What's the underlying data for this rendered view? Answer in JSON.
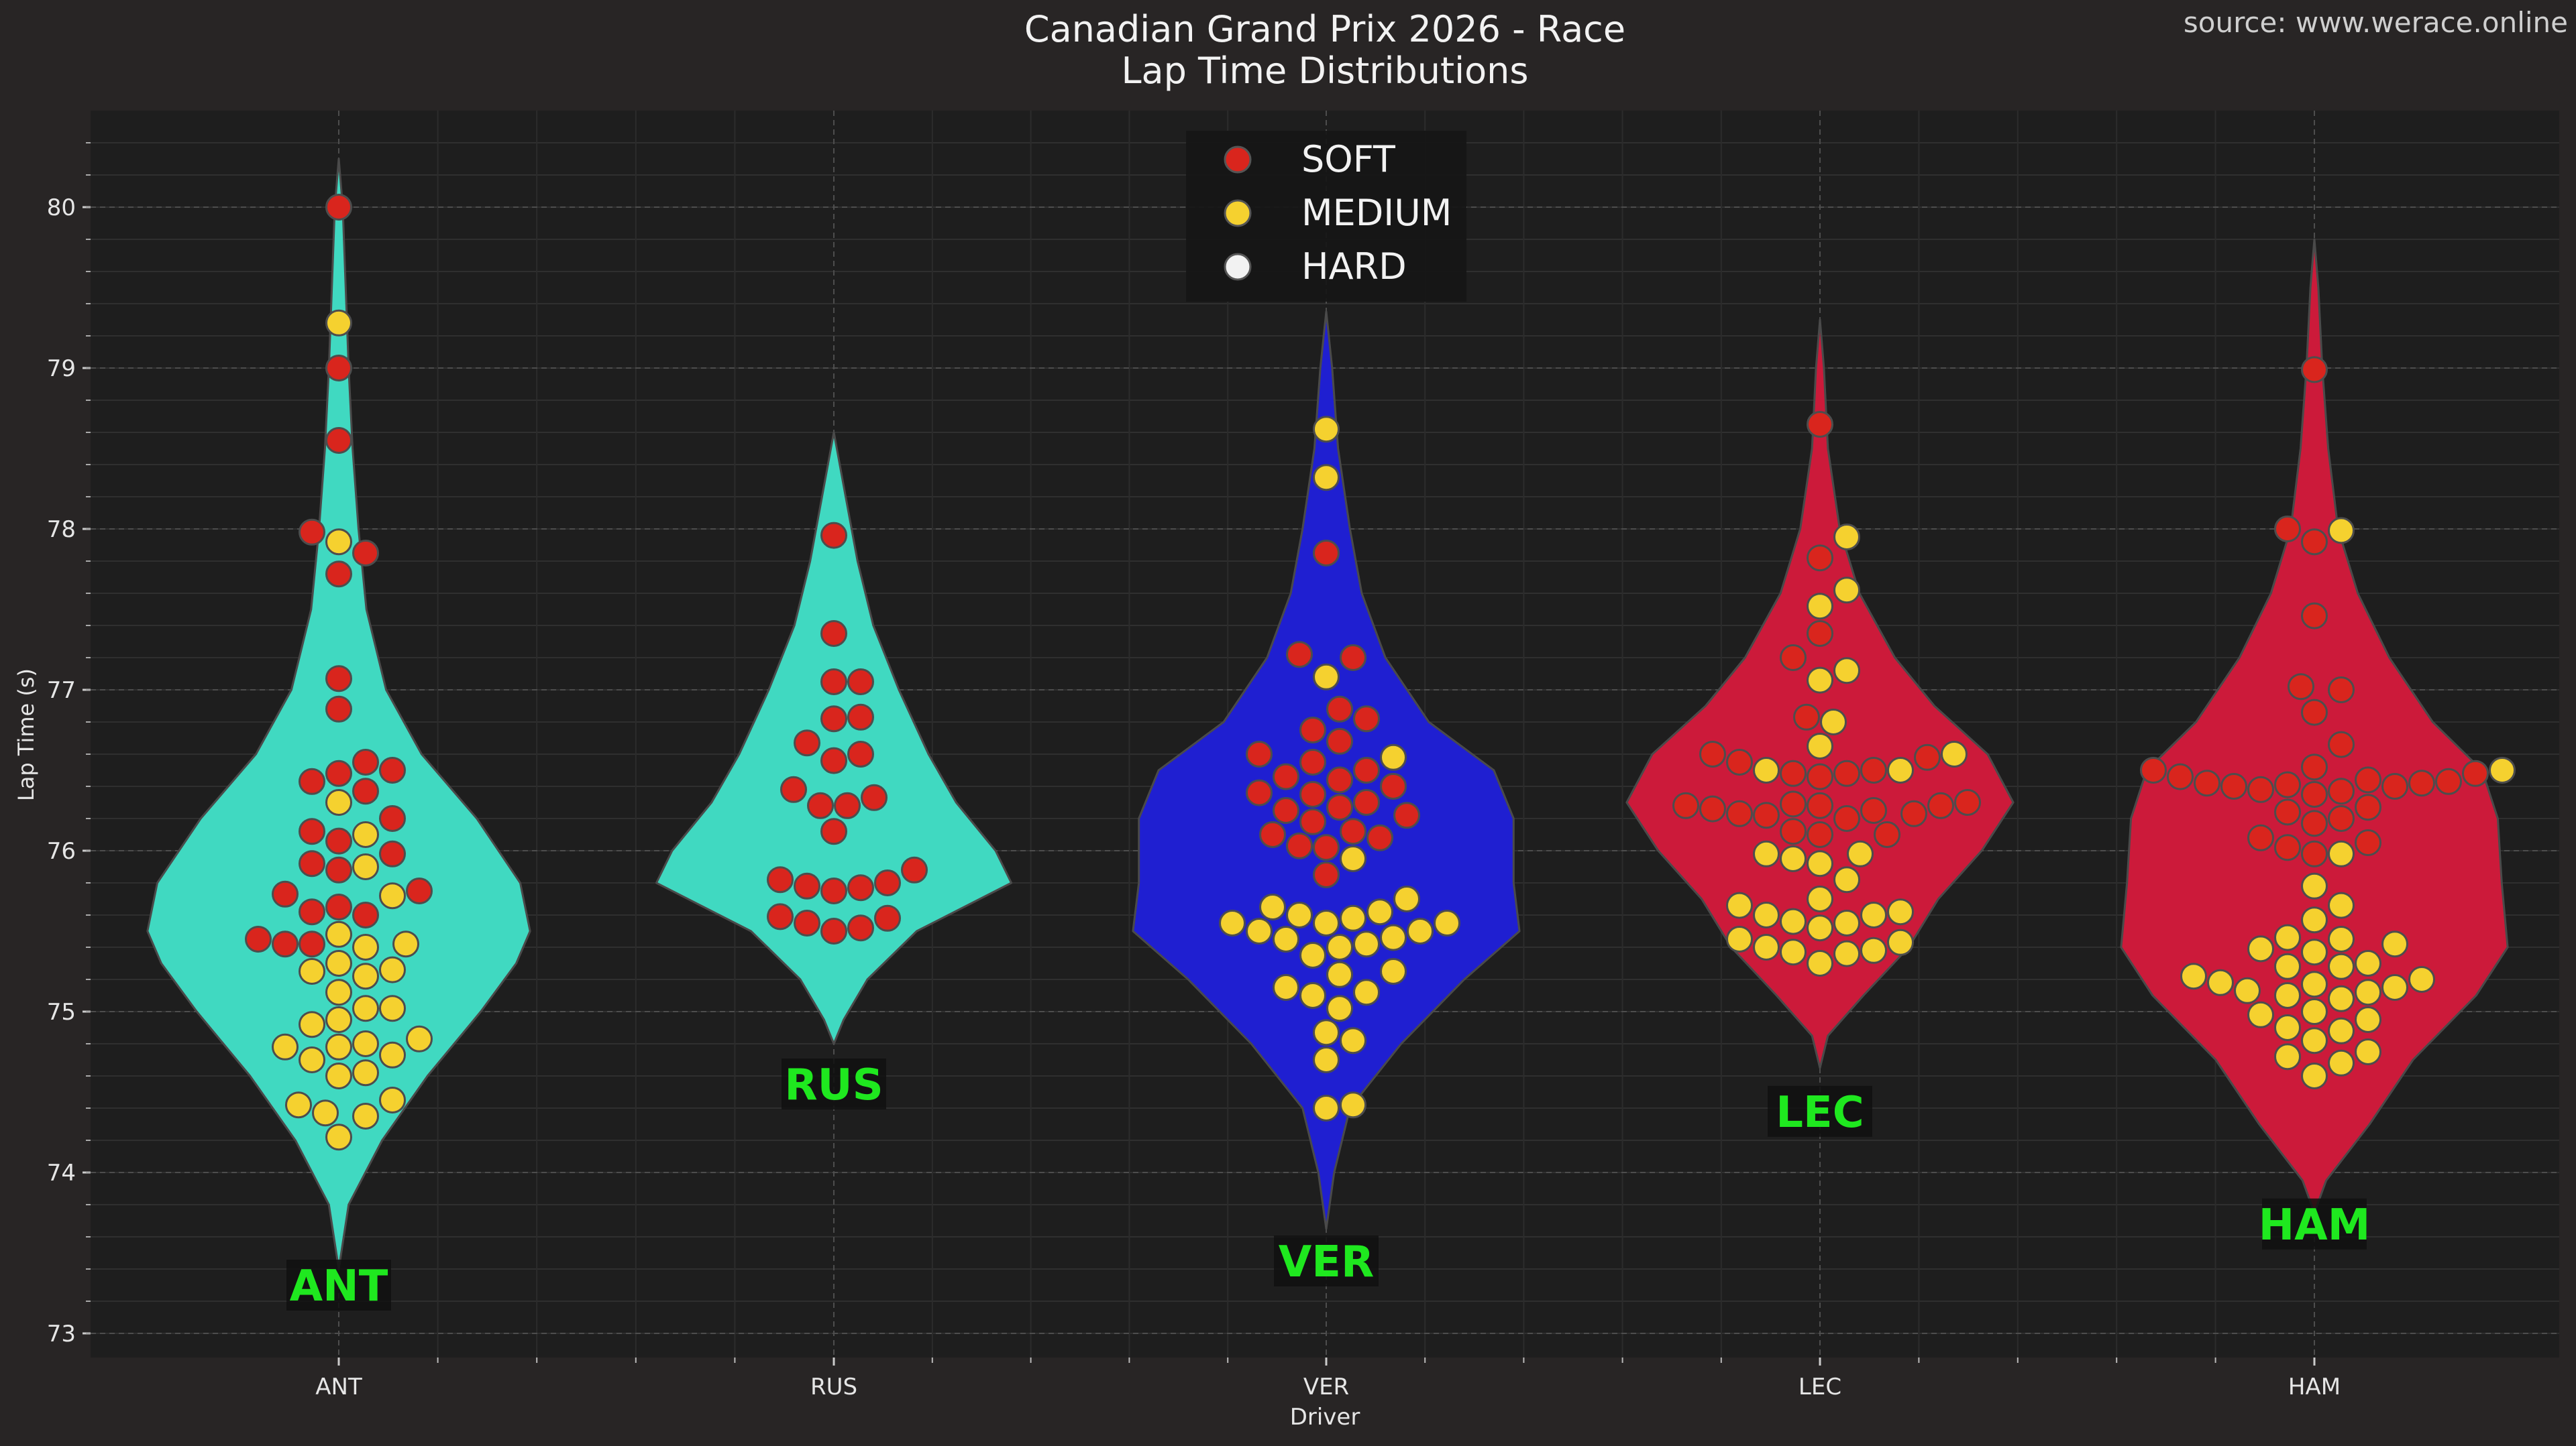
{
  "source_text": "source: www.werace.online",
  "colors": {
    "background": "#282525",
    "plot_background": "#1e1e1e",
    "soft": "#d9251d",
    "medium": "#f5d12f",
    "hard": "#f2f2f2",
    "ANT": "#40d9c1",
    "RUS": "#40d9c1",
    "VER": "#1f1fd1",
    "LEC": "#cc1a3a",
    "HAM": "#cc1a3a",
    "driver_label": "#1fe81f"
  },
  "chart_data": {
    "type": "violin",
    "title": "Canadian Grand Prix 2026 - Race",
    "subtitle": "Lap Time Distributions",
    "xlabel": "Driver",
    "ylabel": "Lap Time (s)",
    "ylim": [
      72.85,
      80.6
    ],
    "yticks": [
      73,
      74,
      75,
      76,
      77,
      78,
      79,
      80
    ],
    "categories": [
      "ANT",
      "RUS",
      "VER",
      "LEC",
      "HAM"
    ],
    "grid": true,
    "legend": {
      "placement": "top-center",
      "entries": [
        {
          "label": "SOFT",
          "compound": "soft"
        },
        {
          "label": "MEDIUM",
          "compound": "medium"
        },
        {
          "label": "HARD",
          "compound": "hard"
        }
      ]
    },
    "violins": [
      {
        "driver": "ANT",
        "label_value": 73.3,
        "profile": [
          [
            73.4,
            0.0
          ],
          [
            73.8,
            0.05
          ],
          [
            74.2,
            0.22
          ],
          [
            74.6,
            0.45
          ],
          [
            75.0,
            0.72
          ],
          [
            75.3,
            0.9
          ],
          [
            75.5,
            0.97
          ],
          [
            75.8,
            0.92
          ],
          [
            76.2,
            0.7
          ],
          [
            76.6,
            0.42
          ],
          [
            77.0,
            0.24
          ],
          [
            77.5,
            0.14
          ],
          [
            78.0,
            0.1
          ],
          [
            78.5,
            0.07
          ],
          [
            79.0,
            0.05
          ],
          [
            79.5,
            0.035
          ],
          [
            80.0,
            0.02
          ],
          [
            80.3,
            0.0
          ]
        ],
        "points": {
          "soft": [
            80.0,
            79.0,
            78.55,
            77.98,
            77.85,
            77.72,
            77.07,
            76.88,
            76.55,
            76.5,
            76.48,
            76.43,
            76.37,
            76.2,
            76.12,
            76.06,
            75.98,
            75.92,
            75.88,
            75.75,
            75.73,
            75.65,
            75.62,
            75.6,
            75.45,
            75.42,
            75.42
          ],
          "medium": [
            79.28,
            77.92,
            76.3,
            76.1,
            75.9,
            75.72,
            75.48,
            75.42,
            75.4,
            75.3,
            75.26,
            75.25,
            75.22,
            75.12,
            75.02,
            75.02,
            74.95,
            74.92,
            74.83,
            74.8,
            74.78,
            74.78,
            74.73,
            74.7,
            74.62,
            74.6,
            74.45,
            74.42,
            74.37,
            74.35,
            74.22
          ]
        }
      },
      {
        "driver": "RUS",
        "label_value": 74.55,
        "profile": [
          [
            74.8,
            0.0
          ],
          [
            74.95,
            0.05
          ],
          [
            75.2,
            0.17
          ],
          [
            75.5,
            0.42
          ],
          [
            75.8,
            0.9
          ],
          [
            76.0,
            0.82
          ],
          [
            76.3,
            0.62
          ],
          [
            76.6,
            0.48
          ],
          [
            77.0,
            0.33
          ],
          [
            77.4,
            0.2
          ],
          [
            77.8,
            0.12
          ],
          [
            78.2,
            0.06
          ],
          [
            78.6,
            0.0
          ]
        ],
        "points": {
          "soft": [
            77.96,
            77.35,
            77.05,
            77.05,
            76.83,
            76.82,
            76.67,
            76.6,
            76.56,
            76.38,
            76.33,
            76.28,
            76.28,
            76.12,
            75.88,
            75.82,
            75.8,
            75.78,
            75.77,
            75.75,
            75.59,
            75.58,
            75.55,
            75.52,
            75.5
          ],
          "medium": []
        }
      },
      {
        "driver": "VER",
        "label_value": 73.45,
        "profile": [
          [
            73.65,
            0.0
          ],
          [
            74.0,
            0.04
          ],
          [
            74.4,
            0.12
          ],
          [
            74.8,
            0.38
          ],
          [
            75.2,
            0.7
          ],
          [
            75.5,
            0.98
          ],
          [
            75.8,
            0.95
          ],
          [
            76.2,
            0.95
          ],
          [
            76.5,
            0.85
          ],
          [
            76.8,
            0.52
          ],
          [
            77.2,
            0.3
          ],
          [
            77.6,
            0.18
          ],
          [
            78.0,
            0.12
          ],
          [
            78.5,
            0.06
          ],
          [
            79.0,
            0.03
          ],
          [
            79.35,
            0.0
          ]
        ],
        "points": {
          "soft": [
            77.85,
            77.22,
            77.2,
            76.88,
            76.82,
            76.75,
            76.68,
            76.6,
            76.55,
            76.5,
            76.46,
            76.44,
            76.4,
            76.36,
            76.35,
            76.3,
            76.27,
            76.25,
            76.22,
            76.18,
            76.12,
            76.1,
            76.08,
            76.03,
            76.02,
            75.85
          ],
          "medium": [
            78.62,
            78.32,
            77.08,
            76.58,
            75.95,
            75.7,
            75.65,
            75.62,
            75.6,
            75.58,
            75.55,
            75.55,
            75.55,
            75.5,
            75.5,
            75.46,
            75.45,
            75.42,
            75.4,
            75.35,
            75.25,
            75.23,
            75.15,
            75.12,
            75.1,
            75.02,
            74.87,
            74.82,
            74.7,
            74.42,
            74.4
          ]
        }
      },
      {
        "driver": "LEC",
        "label_value": 74.38,
        "profile": [
          [
            74.65,
            0.0
          ],
          [
            74.85,
            0.04
          ],
          [
            75.1,
            0.22
          ],
          [
            75.4,
            0.45
          ],
          [
            75.7,
            0.6
          ],
          [
            76.0,
            0.82
          ],
          [
            76.3,
            0.98
          ],
          [
            76.6,
            0.85
          ],
          [
            76.9,
            0.58
          ],
          [
            77.2,
            0.38
          ],
          [
            77.6,
            0.2
          ],
          [
            78.0,
            0.1
          ],
          [
            78.5,
            0.04
          ],
          [
            79.0,
            0.02
          ],
          [
            79.3,
            0.0
          ]
        ],
        "points": {
          "soft": [
            78.65,
            77.82,
            77.35,
            77.2,
            76.83,
            76.6,
            76.58,
            76.55,
            76.5,
            76.48,
            76.48,
            76.46,
            76.3,
            76.29,
            76.28,
            76.28,
            76.28,
            76.26,
            76.25,
            76.23,
            76.23,
            76.22,
            76.2,
            76.12,
            76.1,
            76.1
          ],
          "medium": [
            77.95,
            77.62,
            77.52,
            77.12,
            77.06,
            76.8,
            76.65,
            76.6,
            76.5,
            76.5,
            75.98,
            75.98,
            75.95,
            75.92,
            75.82,
            75.7,
            75.66,
            75.62,
            75.6,
            75.6,
            75.56,
            75.55,
            75.52,
            75.45,
            75.43,
            75.4,
            75.38,
            75.37,
            75.36,
            75.3
          ]
        }
      },
      {
        "driver": "HAM",
        "label_value": 73.68,
        "profile": [
          [
            73.75,
            0.0
          ],
          [
            73.95,
            0.06
          ],
          [
            74.3,
            0.28
          ],
          [
            74.7,
            0.5
          ],
          [
            75.1,
            0.82
          ],
          [
            75.4,
            0.98
          ],
          [
            75.8,
            0.95
          ],
          [
            76.2,
            0.93
          ],
          [
            76.5,
            0.85
          ],
          [
            76.8,
            0.6
          ],
          [
            77.2,
            0.38
          ],
          [
            77.6,
            0.22
          ],
          [
            78.0,
            0.12
          ],
          [
            78.5,
            0.07
          ],
          [
            79.0,
            0.04
          ],
          [
            79.5,
            0.02
          ],
          [
            79.8,
            0.0
          ]
        ],
        "points": {
          "soft": [
            78.99,
            78.0,
            77.92,
            77.46,
            77.02,
            77.0,
            76.86,
            76.66,
            76.52,
            76.5,
            76.48,
            76.46,
            76.44,
            76.43,
            76.42,
            76.42,
            76.41,
            76.4,
            76.4,
            76.38,
            76.37,
            76.35,
            76.27,
            76.24,
            76.2,
            76.17,
            76.08,
            76.05,
            76.02,
            75.98
          ],
          "medium": [
            77.99,
            76.5,
            75.98,
            75.78,
            75.66,
            75.57,
            75.46,
            75.45,
            75.42,
            75.39,
            75.37,
            75.3,
            75.28,
            75.28,
            75.22,
            75.2,
            75.18,
            75.17,
            75.15,
            75.13,
            75.12,
            75.1,
            75.08,
            75.0,
            74.98,
            74.95,
            74.9,
            74.88,
            74.82,
            74.75,
            74.72,
            74.68,
            74.6
          ]
        }
      }
    ]
  }
}
